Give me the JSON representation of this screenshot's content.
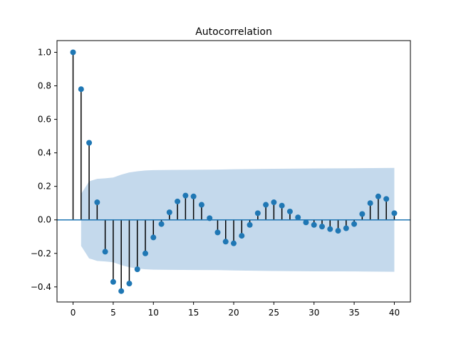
{
  "chart_data": {
    "type": "stem",
    "title": "Autocorrelation",
    "xlabel": "",
    "ylabel": "",
    "xlim": [
      -2,
      42
    ],
    "ylim": [
      -0.49,
      1.07
    ],
    "xticks": [
      0,
      5,
      10,
      15,
      20,
      25,
      30,
      35,
      40
    ],
    "yticks": [
      -0.4,
      -0.2,
      0.0,
      0.2,
      0.4,
      0.6,
      0.8,
      1.0
    ],
    "grid": false,
    "legend": "none",
    "lags": [
      0,
      1,
      2,
      3,
      4,
      5,
      6,
      7,
      8,
      9,
      10,
      11,
      12,
      13,
      14,
      15,
      16,
      17,
      18,
      19,
      20,
      21,
      22,
      23,
      24,
      25,
      26,
      27,
      28,
      29,
      30,
      31,
      32,
      33,
      34,
      35,
      36,
      37,
      38,
      39,
      40
    ],
    "acf": [
      1.0,
      0.78,
      0.46,
      0.105,
      -0.19,
      -0.37,
      -0.425,
      -0.38,
      -0.295,
      -0.2,
      -0.105,
      -0.025,
      0.045,
      0.11,
      0.145,
      0.14,
      0.09,
      0.01,
      -0.075,
      -0.13,
      -0.14,
      -0.095,
      -0.03,
      0.04,
      0.09,
      0.105,
      0.085,
      0.05,
      0.015,
      -0.015,
      -0.03,
      -0.04,
      -0.055,
      -0.065,
      -0.05,
      -0.025,
      0.035,
      0.1,
      0.14,
      0.125,
      0.04
    ],
    "confidence_band": [
      [
        1,
        0.155
      ],
      [
        2,
        0.23
      ],
      [
        3,
        0.245
      ],
      [
        4,
        0.248
      ],
      [
        5,
        0.253
      ],
      [
        6,
        0.27
      ],
      [
        7,
        0.283
      ],
      [
        8,
        0.29
      ],
      [
        9,
        0.295
      ],
      [
        10,
        0.297
      ],
      [
        12,
        0.298
      ],
      [
        15,
        0.299
      ],
      [
        18,
        0.3
      ],
      [
        20,
        0.302
      ],
      [
        25,
        0.305
      ],
      [
        30,
        0.307
      ],
      [
        35,
        0.308
      ],
      [
        40,
        0.31
      ]
    ],
    "colors": {
      "marker": "#1f77b4",
      "stem": "#000000",
      "baseline": "#1f77b4",
      "band": "#c4d9ec"
    }
  }
}
